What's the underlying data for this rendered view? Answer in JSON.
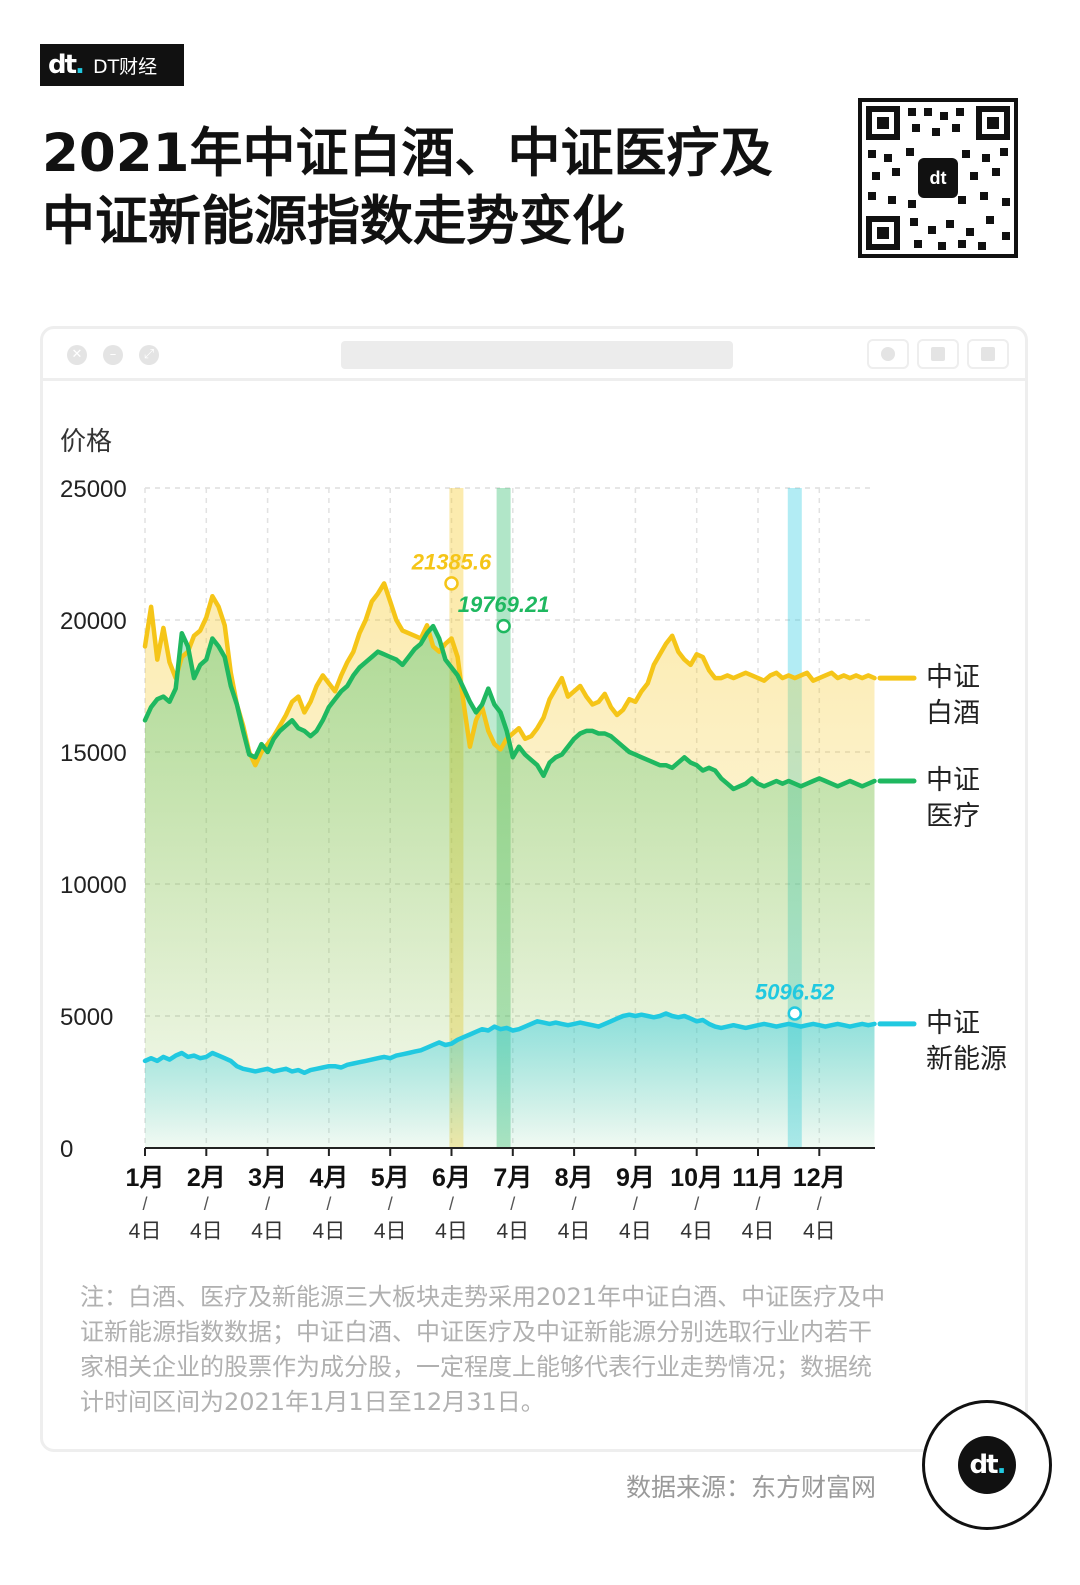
{
  "brand": {
    "logo_text": "DT财经"
  },
  "title": "2021年中证白酒、中证医疗及中证新能源指数走势变化",
  "note": "注：白酒、医疗及新能源三大板块走势采用2021年中证白酒、中证医疗及中证新能源指数数据；中证白酒、中证医疗及中证新能源分别选取行业内若干家相关企业的股票作为成分股，一定程度上能够代表行业走势情况；数据统计时间区间为2021年1月1日至12月31日。",
  "source": "数据来源：东方财富网",
  "colors": {
    "baijiu": "#f5c518",
    "yiliao": "#1fb860",
    "xinnengyuan": "#21c9e0",
    "text": "#111111"
  },
  "icons": [
    "close-icon",
    "minimize-icon",
    "maximize-icon",
    "qr-code-icon",
    "dt-logo-icon"
  ],
  "chart_data": {
    "type": "line",
    "ylabel": "价格",
    "ylim": [
      0,
      25000
    ],
    "yticks": [
      "25000",
      "20000",
      "15000",
      "10000",
      "5000",
      "0"
    ],
    "ytick_values": [
      25000,
      20000,
      15000,
      10000,
      5000,
      0
    ],
    "grid": true,
    "x_ticks": [
      {
        "month": "1月",
        "day": "4日",
        "t": 0
      },
      {
        "month": "2月",
        "day": "4日",
        "t": 1
      },
      {
        "month": "3月",
        "day": "4日",
        "t": 2
      },
      {
        "month": "4月",
        "day": "4日",
        "t": 3
      },
      {
        "month": "5月",
        "day": "4日",
        "t": 4
      },
      {
        "month": "6月",
        "day": "4日",
        "t": 5
      },
      {
        "month": "7月",
        "day": "4日",
        "t": 6
      },
      {
        "month": "8月",
        "day": "4日",
        "t": 7
      },
      {
        "month": "9月",
        "day": "4日",
        "t": 8
      },
      {
        "month": "10月",
        "day": "4日",
        "t": 9
      },
      {
        "month": "11月",
        "day": "4日",
        "t": 10
      },
      {
        "month": "12月",
        "day": "4日",
        "t": 11
      }
    ],
    "x_end": 11.9,
    "series": [
      {
        "key": "baijiu",
        "name": "中证白酒",
        "legend_lines": [
          "中证",
          "白酒"
        ],
        "color": "#f5c518",
        "x": [
          0,
          0.1,
          0.2,
          0.3,
          0.4,
          0.5,
          0.6,
          0.7,
          0.8,
          0.9,
          1,
          1.1,
          1.2,
          1.3,
          1.4,
          1.5,
          1.6,
          1.7,
          1.8,
          1.9,
          2,
          2.1,
          2.2,
          2.3,
          2.4,
          2.5,
          2.6,
          2.7,
          2.8,
          2.9,
          3,
          3.1,
          3.2,
          3.3,
          3.4,
          3.5,
          3.6,
          3.7,
          3.8,
          3.9,
          4,
          4.1,
          4.2,
          4.3,
          4.4,
          4.5,
          4.6,
          4.7,
          4.8,
          4.9,
          5,
          5.1,
          5.2,
          5.3,
          5.4,
          5.5,
          5.6,
          5.7,
          5.8,
          5.9,
          6,
          6.1,
          6.2,
          6.3,
          6.4,
          6.5,
          6.6,
          6.7,
          6.8,
          6.9,
          7,
          7.1,
          7.2,
          7.3,
          7.4,
          7.5,
          7.6,
          7.7,
          7.8,
          7.9,
          8,
          8.1,
          8.2,
          8.3,
          8.4,
          8.5,
          8.6,
          8.7,
          8.8,
          8.9,
          9,
          9.1,
          9.2,
          9.3,
          9.4,
          9.5,
          9.6,
          9.7,
          9.8,
          9.9,
          10,
          10.1,
          10.2,
          10.3,
          10.4,
          10.5,
          10.6,
          10.7,
          10.8,
          10.9,
          11,
          11.1,
          11.2,
          11.3,
          11.4,
          11.5,
          11.6,
          11.7,
          11.8,
          11.9
        ],
        "values": [
          19000,
          20500,
          18500,
          19700,
          18400,
          17800,
          18600,
          18800,
          19400,
          19600,
          20100,
          20900,
          20500,
          19800,
          18000,
          16800,
          16000,
          15000,
          14500,
          15000,
          15300,
          15600,
          16000,
          16400,
          16900,
          17100,
          16500,
          16900,
          17500,
          17900,
          17600,
          17300,
          17900,
          18400,
          18800,
          19500,
          20000,
          20700,
          21000,
          21385.6,
          20700,
          20000,
          19600,
          19500,
          19400,
          19300,
          19800,
          19000,
          18800,
          19100,
          19300,
          18600,
          16800,
          15200,
          16200,
          16700,
          15800,
          15300,
          15100,
          15500,
          15700,
          15900,
          15500,
          15600,
          15900,
          16300,
          17000,
          17400,
          17800,
          17100,
          17300,
          17500,
          17100,
          16800,
          16900,
          17200,
          16700,
          16400,
          16600,
          17000,
          16900,
          17300,
          17600,
          18300,
          18700,
          19100,
          19400,
          18800,
          18500,
          18300,
          18700,
          18600,
          18100,
          17800,
          17800,
          17900,
          17800,
          17900,
          18000,
          17900,
          17800,
          17700,
          17900,
          18000,
          17800,
          17900,
          17800,
          17900,
          18000,
          17700,
          17800,
          17900,
          18000,
          17800,
          17900,
          17800,
          17900,
          17800,
          17900,
          17800
        ]
      },
      {
        "key": "yiliao",
        "name": "中证医疗",
        "legend_lines": [
          "中证",
          "医疗"
        ],
        "color": "#1fb860",
        "x": [
          0,
          0.1,
          0.2,
          0.3,
          0.4,
          0.5,
          0.6,
          0.7,
          0.8,
          0.9,
          1,
          1.1,
          1.2,
          1.3,
          1.4,
          1.5,
          1.6,
          1.7,
          1.8,
          1.9,
          2,
          2.1,
          2.2,
          2.3,
          2.4,
          2.5,
          2.6,
          2.7,
          2.8,
          2.9,
          3,
          3.1,
          3.2,
          3.3,
          3.4,
          3.5,
          3.6,
          3.7,
          3.8,
          3.9,
          4,
          4.1,
          4.2,
          4.3,
          4.4,
          4.5,
          4.6,
          4.7,
          4.8,
          4.9,
          5,
          5.1,
          5.2,
          5.3,
          5.4,
          5.5,
          5.6,
          5.7,
          5.8,
          5.9,
          6,
          6.1,
          6.2,
          6.3,
          6.4,
          6.5,
          6.6,
          6.7,
          6.8,
          6.9,
          7,
          7.1,
          7.2,
          7.3,
          7.4,
          7.5,
          7.6,
          7.7,
          7.8,
          7.9,
          8,
          8.1,
          8.2,
          8.3,
          8.4,
          8.5,
          8.6,
          8.7,
          8.8,
          8.9,
          9,
          9.1,
          9.2,
          9.3,
          9.4,
          9.5,
          9.6,
          9.7,
          9.8,
          9.9,
          10,
          10.1,
          10.2,
          10.3,
          10.4,
          10.5,
          10.6,
          10.7,
          10.8,
          10.9,
          11,
          11.1,
          11.2,
          11.3,
          11.4,
          11.5,
          11.6,
          11.7,
          11.8,
          11.9
        ],
        "values": [
          16200,
          16700,
          17000,
          17100,
          16900,
          17400,
          19500,
          19000,
          17800,
          18300,
          18500,
          19300,
          19000,
          18600,
          17500,
          16800,
          15800,
          14900,
          14800,
          15300,
          15000,
          15500,
          15800,
          16000,
          16200,
          15900,
          15800,
          15600,
          15800,
          16200,
          16700,
          17000,
          17300,
          17500,
          17900,
          18200,
          18400,
          18600,
          18800,
          18700,
          18600,
          18500,
          18300,
          18600,
          18900,
          19100,
          19500,
          19769.21,
          19300,
          18500,
          18200,
          17900,
          17400,
          16900,
          16500,
          16800,
          17400,
          16800,
          16500,
          15800,
          14800,
          15200,
          14900,
          14700,
          14500,
          14100,
          14600,
          14800,
          14900,
          15200,
          15500,
          15700,
          15800,
          15800,
          15700,
          15700,
          15600,
          15400,
          15200,
          15000,
          14900,
          14800,
          14700,
          14600,
          14500,
          14500,
          14400,
          14600,
          14800,
          14600,
          14500,
          14300,
          14400,
          14300,
          14000,
          13800,
          13600,
          13700,
          13800,
          14000,
          13800,
          13700,
          13800,
          13900,
          13800,
          13900,
          13800,
          13700,
          13800,
          13900,
          14000,
          13900,
          13800,
          13700,
          13800,
          13900,
          13800,
          13700,
          13800,
          13900
        ]
      },
      {
        "key": "xinnengyuan",
        "name": "中证新能源",
        "legend_lines": [
          "中证",
          "新能源"
        ],
        "color": "#21c9e0",
        "x": [
          0,
          0.1,
          0.2,
          0.3,
          0.4,
          0.5,
          0.6,
          0.7,
          0.8,
          0.9,
          1,
          1.1,
          1.2,
          1.3,
          1.4,
          1.5,
          1.6,
          1.7,
          1.8,
          1.9,
          2,
          2.1,
          2.2,
          2.3,
          2.4,
          2.5,
          2.6,
          2.7,
          2.8,
          2.9,
          3,
          3.1,
          3.2,
          3.3,
          3.4,
          3.5,
          3.6,
          3.7,
          3.8,
          3.9,
          4,
          4.1,
          4.2,
          4.3,
          4.4,
          4.5,
          4.6,
          4.7,
          4.8,
          4.9,
          5,
          5.1,
          5.2,
          5.3,
          5.4,
          5.5,
          5.6,
          5.7,
          5.8,
          5.9,
          6,
          6.1,
          6.2,
          6.3,
          6.4,
          6.5,
          6.6,
          6.7,
          6.8,
          6.9,
          7,
          7.1,
          7.2,
          7.3,
          7.4,
          7.5,
          7.6,
          7.7,
          7.8,
          7.9,
          8,
          8.1,
          8.2,
          8.3,
          8.4,
          8.5,
          8.6,
          8.7,
          8.8,
          8.9,
          9,
          9.1,
          9.2,
          9.3,
          9.4,
          9.5,
          9.6,
          9.7,
          9.8,
          9.9,
          10,
          10.1,
          10.2,
          10.3,
          10.4,
          10.5,
          10.6,
          10.7,
          10.8,
          10.9,
          11,
          11.1,
          11.2,
          11.3,
          11.4,
          11.5,
          11.6,
          11.7,
          11.8,
          11.9
        ],
        "values": [
          3300,
          3400,
          3300,
          3450,
          3350,
          3500,
          3600,
          3450,
          3500,
          3400,
          3450,
          3600,
          3500,
          3400,
          3300,
          3100,
          3000,
          2950,
          2900,
          2950,
          3000,
          2900,
          2950,
          3000,
          2900,
          2950,
          2850,
          2950,
          3000,
          3050,
          3100,
          3100,
          3050,
          3150,
          3200,
          3250,
          3300,
          3350,
          3400,
          3450,
          3400,
          3500,
          3550,
          3600,
          3650,
          3700,
          3800,
          3900,
          4000,
          3900,
          3950,
          4100,
          4200,
          4300,
          4400,
          4500,
          4450,
          4600,
          4500,
          4550,
          4450,
          4500,
          4600,
          4700,
          4800,
          4750,
          4700,
          4750,
          4700,
          4650,
          4700,
          4750,
          4700,
          4650,
          4600,
          4700,
          4800,
          4900,
          5000,
          5050,
          5000,
          5050,
          5000,
          4950,
          5000,
          5096.52,
          5000,
          4950,
          5000,
          4900,
          4800,
          4850,
          4700,
          4600,
          4550,
          4600,
          4650,
          4600,
          4550,
          4600,
          4650,
          4700,
          4650,
          4600,
          4650,
          4700,
          4650,
          4600,
          4650,
          4700,
          4650,
          4600,
          4650,
          4700,
          4650,
          4600,
          4650,
          4700,
          4650,
          4700
        ]
      }
    ],
    "highlights": [
      {
        "t": 5.08,
        "color": "#f5c518"
      },
      {
        "t": 5.85,
        "color": "#1fb860"
      },
      {
        "t": 10.6,
        "color": "#21c9e0"
      }
    ],
    "annotations": [
      {
        "series": "baijiu",
        "t": 5.0,
        "value": 21385.6,
        "label": "21385.6"
      },
      {
        "series": "yiliao",
        "t": 5.85,
        "value": 19769.21,
        "label": "19769.21"
      },
      {
        "series": "xinnengyuan",
        "t": 10.6,
        "value": 5096.52,
        "label": "5096.52"
      }
    ]
  }
}
